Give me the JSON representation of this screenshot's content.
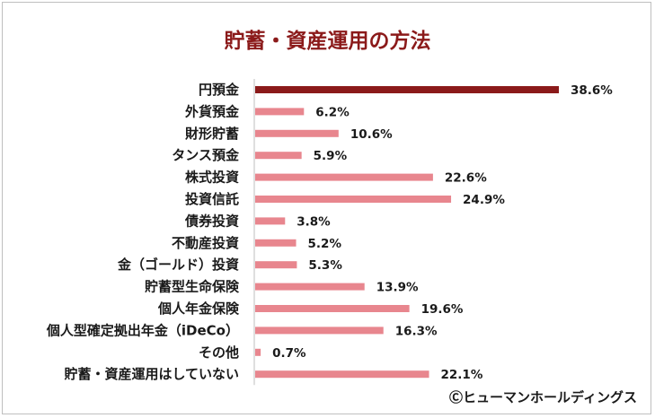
{
  "chart_data": {
    "type": "bar",
    "orientation": "horizontal",
    "title": "貯蓄・資産運用の方法",
    "categories": [
      "円預金",
      "外貨預金",
      "財形貯蓄",
      "タンス預金",
      "株式投資",
      "投資信託",
      "債券投資",
      "不動産投資",
      "金（ゴールド）投資",
      "貯蓄型生命保険",
      "個人年金保険",
      "個人型確定拠出年金（iDeCo）",
      "その他",
      "貯蓄・資産運用はしていない"
    ],
    "values": [
      38.6,
      6.2,
      10.6,
      5.9,
      22.6,
      24.9,
      3.8,
      5.2,
      5.3,
      13.9,
      19.6,
      16.3,
      0.7,
      22.1
    ],
    "value_labels": [
      "38.6%",
      "6.2%",
      "10.6%",
      "5.9%",
      "22.6%",
      "24.9%",
      "3.8%",
      "5.2%",
      "5.3%",
      "13.9%",
      "19.6%",
      "16.3%",
      "0.7%",
      "22.1%"
    ],
    "xlim": [
      0,
      45
    ],
    "highlight_color": "#8b1a1a",
    "bar_color": "#e8868e",
    "grid": false,
    "legend": "none"
  },
  "credit": "Ⓒヒューマンホールディングス"
}
